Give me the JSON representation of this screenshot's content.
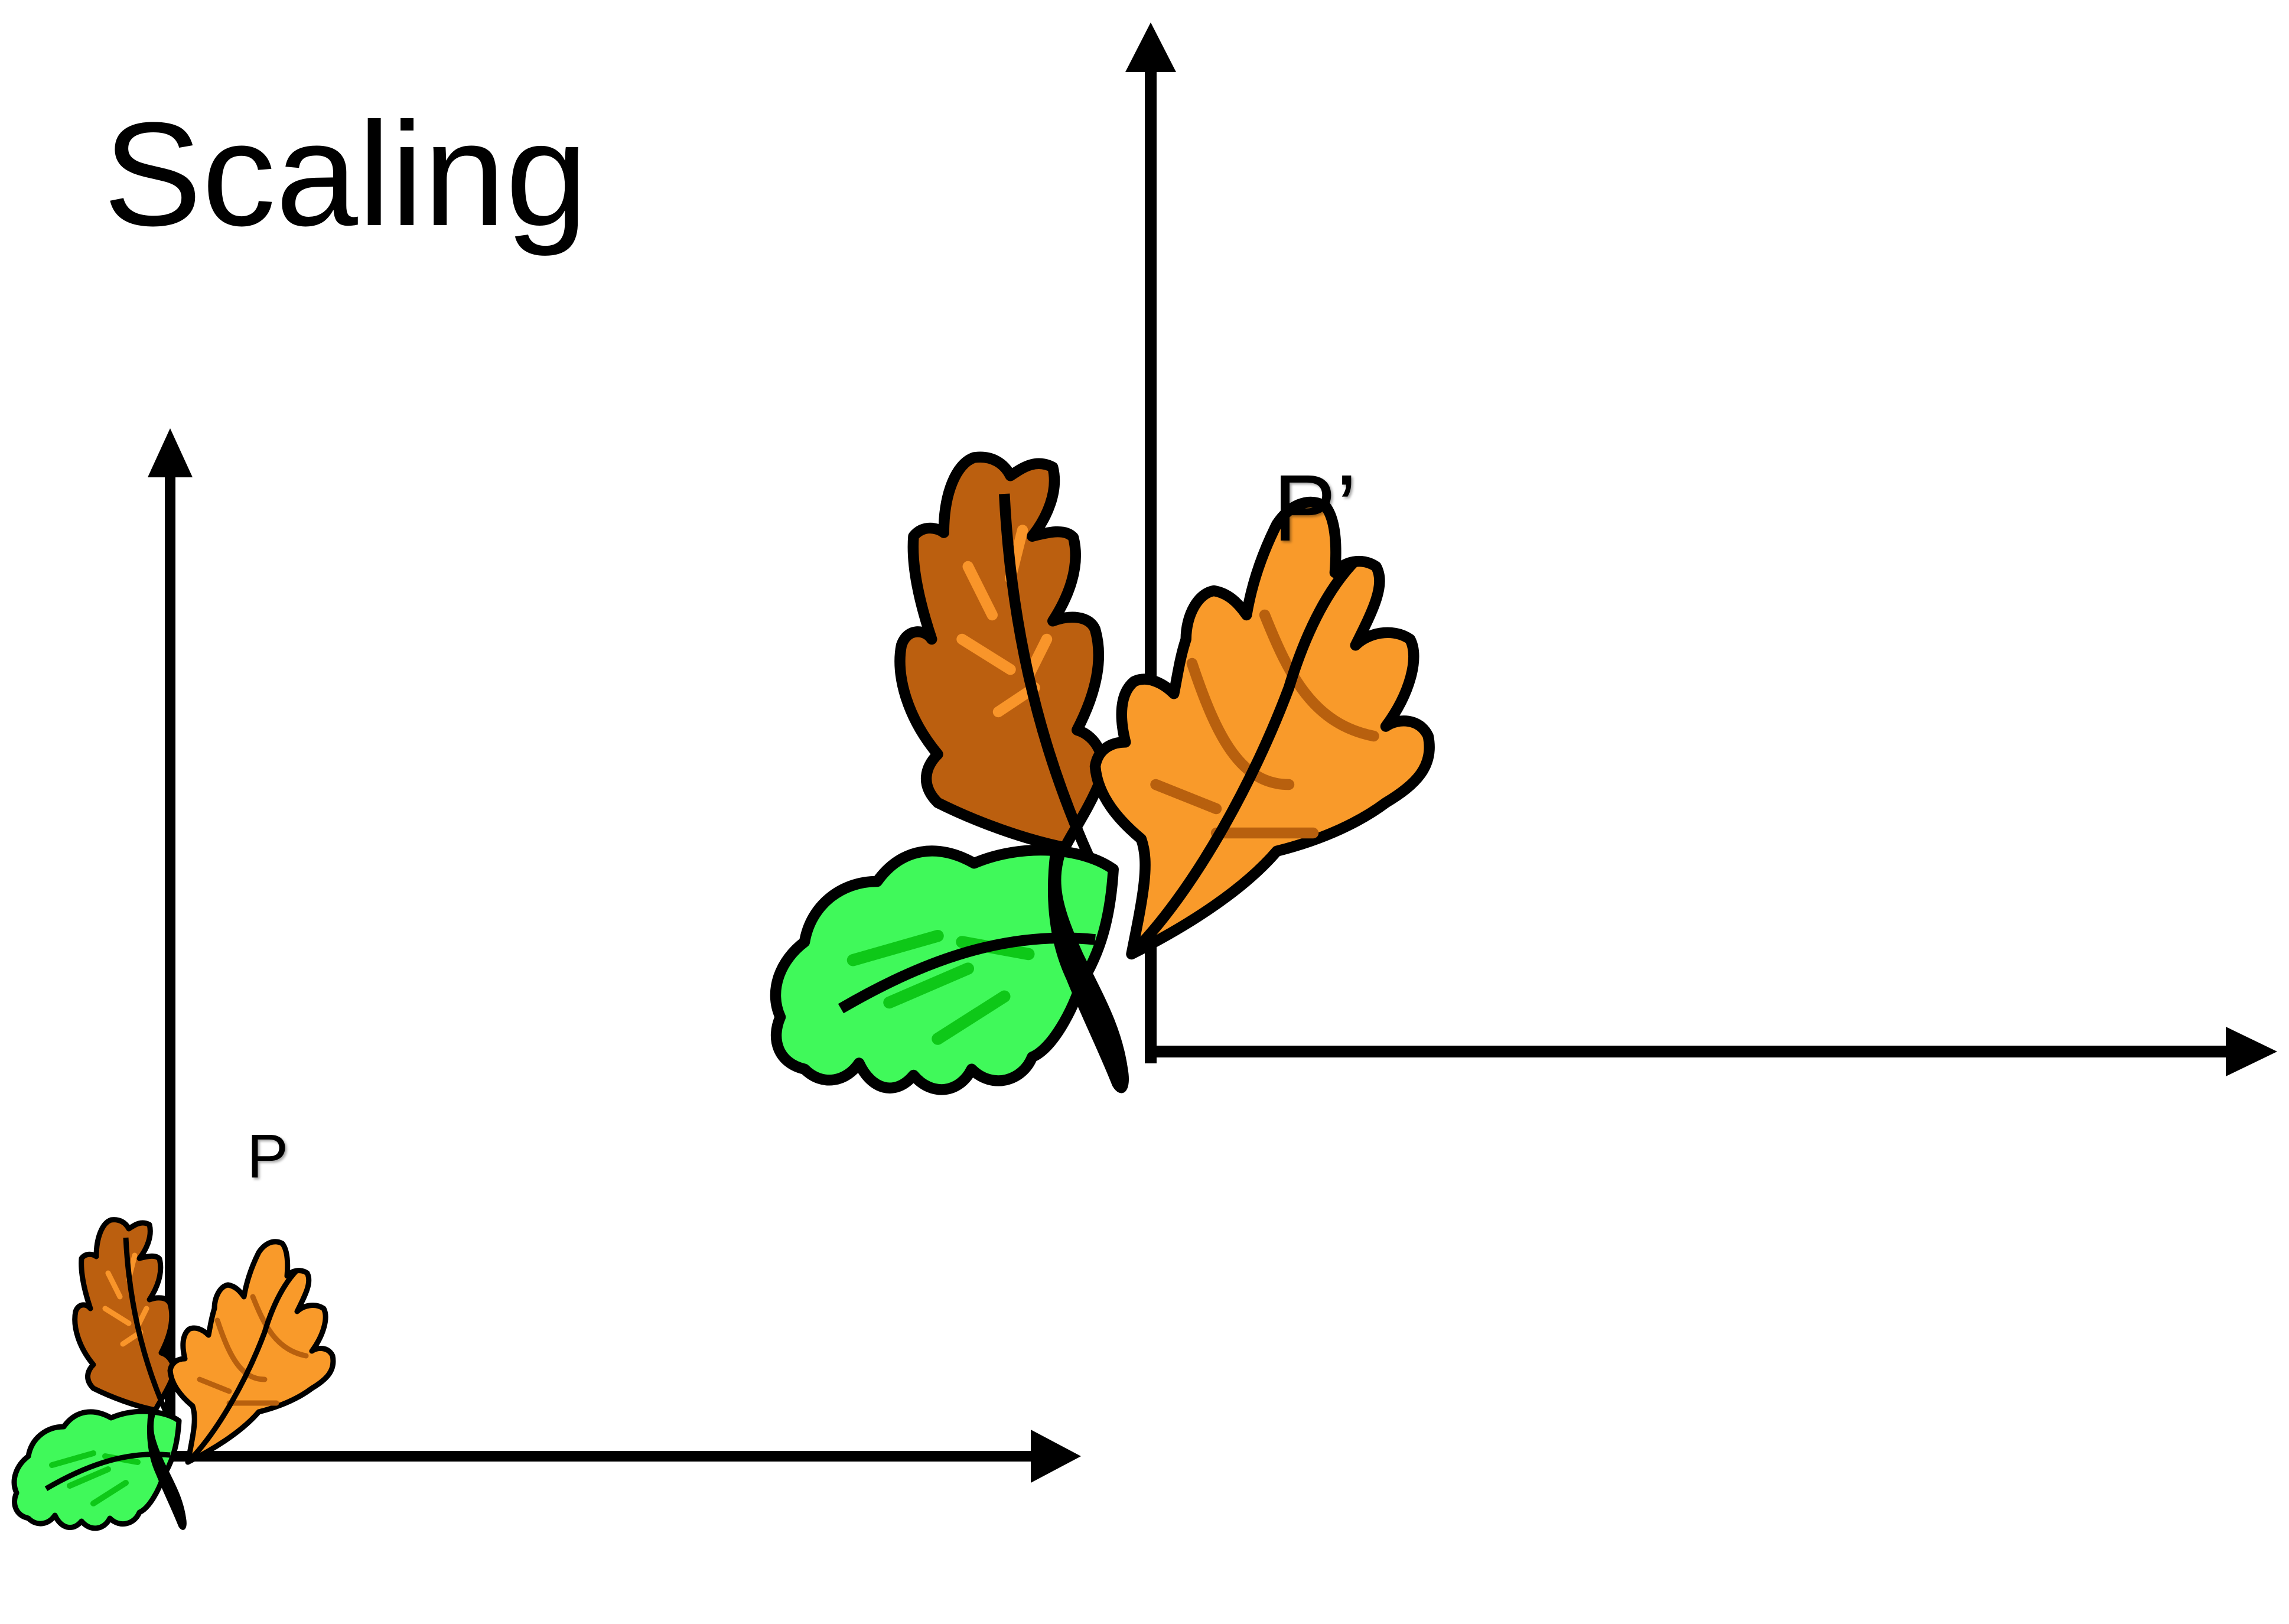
{
  "slide": {
    "title": "Scaling",
    "label_original": "P",
    "label_scaled": "P’"
  },
  "figures": {
    "original": {
      "name": "oak-leaf-sprig",
      "role": "original"
    },
    "scaled": {
      "name": "oak-leaf-sprig",
      "role": "scaled",
      "scale_factor": 2.5
    }
  },
  "icons": [
    "y-axis-arrow",
    "x-axis-arrow",
    "oak-leaf-sprig"
  ],
  "colors": {
    "axis": "#000000",
    "leaf_dark": "#bb5f0f",
    "leaf_dark_vein": "#f9952a",
    "leaf_orange": "#f99a2a",
    "leaf_orange_vein": "#b8600e",
    "leaf_green": "#40f95a",
    "leaf_green_vein": "#0ec818",
    "outline": "#000000"
  }
}
